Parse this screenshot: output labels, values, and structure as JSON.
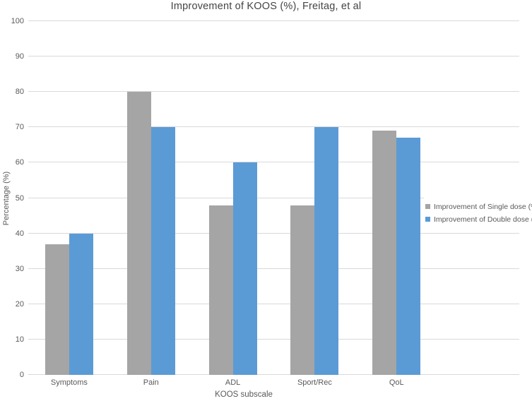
{
  "chart_data": {
    "type": "bar",
    "title": "Improvement of KOOS (%), Freitag, et al",
    "xlabel": "KOOS subscale",
    "ylabel": "Percentage (%)",
    "categories": [
      "Symptoms",
      "Pain",
      "ADL",
      "Sport/Rec",
      "QoL"
    ],
    "series": [
      {
        "name": "Improvement of Single dose (%)",
        "color": "#a5a5a5",
        "values": [
          37,
          80,
          48,
          48,
          69
        ]
      },
      {
        "name": "Improvement of Double dose (%)",
        "color": "#5b9bd5",
        "values": [
          40,
          70,
          60,
          70,
          67
        ]
      }
    ],
    "ylim": [
      0,
      100
    ],
    "ytick_step": 10,
    "grid": true,
    "legend_position": "right-overlay",
    "layout_hints": {
      "extra_category_slot": true
    }
  },
  "colors": {
    "gridline": "#d9d9d9",
    "axis_text": "#595959",
    "title_text": "#444444",
    "background": "#ffffff"
  }
}
